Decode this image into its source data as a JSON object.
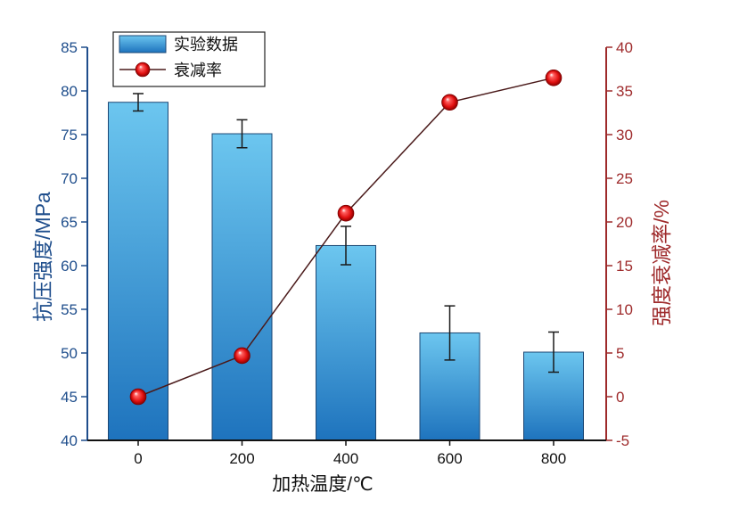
{
  "chart_data": {
    "type": "bar",
    "categories": [
      "0",
      "200",
      "400",
      "600",
      "800"
    ],
    "xlabel": "加热温度/℃",
    "ylabel": "抗压强度/MPa",
    "y2label": "强度衰减率/%",
    "ylim": [
      40,
      85
    ],
    "y2lim": [
      -5,
      40
    ],
    "yticks": [
      40,
      45,
      50,
      55,
      60,
      65,
      70,
      75,
      80,
      85
    ],
    "y2ticks": [
      -5,
      0,
      5,
      10,
      15,
      20,
      25,
      30,
      35,
      40
    ],
    "grid": false,
    "legend": "top-left",
    "axis_colors": {
      "left": "#1f4e8c",
      "right": "#9e2a2b",
      "bottom": "#111111"
    },
    "series": [
      {
        "name": "实验数据",
        "type": "bar",
        "axis": "left",
        "values": [
          78.7,
          75.1,
          62.3,
          52.3,
          50.1
        ],
        "errors": [
          1.0,
          1.6,
          2.2,
          3.1,
          2.3
        ],
        "color": "#3a9ad8"
      },
      {
        "name": "衰减率",
        "type": "line",
        "axis": "right",
        "values": [
          0,
          4.7,
          21.0,
          33.7,
          36.5
        ],
        "color": "#e01010",
        "line_color": "#4a1a1a"
      }
    ]
  }
}
